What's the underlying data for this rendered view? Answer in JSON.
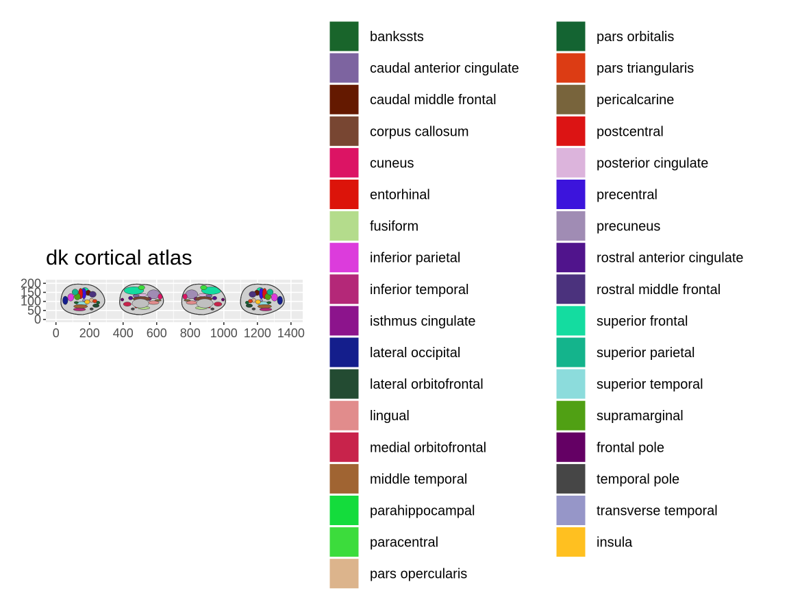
{
  "chart_data": {
    "type": "other",
    "title": "dk cortical atlas",
    "xlim": [
      -60,
      1470
    ],
    "ylim": [
      -15,
      220
    ],
    "x_ticks": [
      0,
      200,
      400,
      600,
      800,
      1000,
      1200,
      1400
    ],
    "y_ticks": [
      0,
      50,
      100,
      150,
      200
    ],
    "x_tick_labels": [
      "0",
      "200",
      "400",
      "600",
      "800",
      "1000",
      "1200",
      "1400"
    ],
    "y_tick_labels": [
      "0",
      "50",
      "100",
      "150",
      "200"
    ],
    "grid": true,
    "panel_background": "#ebebeb",
    "legend_position": "right",
    "views": [
      {
        "center_x": 160,
        "center_y": 110,
        "side": "lateral-left"
      },
      {
        "center_x": 510,
        "center_y": 110,
        "side": "medial-left"
      },
      {
        "center_x": 880,
        "center_y": 110,
        "side": "medial-right"
      },
      {
        "center_x": 1230,
        "center_y": 110,
        "side": "lateral-right"
      }
    ],
    "legend": [
      {
        "label": "bankssts",
        "color": "#19652b"
      },
      {
        "label": "caudal anterior cingulate",
        "color": "#7d64a0"
      },
      {
        "label": "caudal middle frontal",
        "color": "#641900"
      },
      {
        "label": "corpus callosum",
        "color": "#784632"
      },
      {
        "label": "cuneus",
        "color": "#dc1464"
      },
      {
        "label": "entorhinal",
        "color": "#dc140a"
      },
      {
        "label": "fusiform",
        "color": "#b4dc8c"
      },
      {
        "label": "inferior parietal",
        "color": "#dc3cdc"
      },
      {
        "label": "inferior temporal",
        "color": "#b42878"
      },
      {
        "label": "isthmus cingulate",
        "color": "#8c148c"
      },
      {
        "label": "lateral occipital",
        "color": "#141e8c"
      },
      {
        "label": "lateral orbitofrontal",
        "color": "#234b32"
      },
      {
        "label": "lingual",
        "color": "#e18c8c"
      },
      {
        "label": "medial orbitofrontal",
        "color": "#c8234b"
      },
      {
        "label": "middle temporal",
        "color": "#a06432"
      },
      {
        "label": "parahippocampal",
        "color": "#14dc3c"
      },
      {
        "label": "paracentral",
        "color": "#3cdc3c"
      },
      {
        "label": "pars opercularis",
        "color": "#dcb48c"
      },
      {
        "label": "pars orbitalis",
        "color": "#146432"
      },
      {
        "label": "pars triangularis",
        "color": "#dc3c14"
      },
      {
        "label": "pericalcarine",
        "color": "#78643c"
      },
      {
        "label": "postcentral",
        "color": "#dc1414"
      },
      {
        "label": "posterior cingulate",
        "color": "#dcb4dc"
      },
      {
        "label": "precentral",
        "color": "#3c14dc"
      },
      {
        "label": "precuneus",
        "color": "#a08cb4"
      },
      {
        "label": "rostral anterior cingulate",
        "color": "#50148c"
      },
      {
        "label": "rostral middle frontal",
        "color": "#4b327d"
      },
      {
        "label": "superior frontal",
        "color": "#14dca0"
      },
      {
        "label": "superior parietal",
        "color": "#14b48c"
      },
      {
        "label": "superior temporal",
        "color": "#8cdcdc"
      },
      {
        "label": "supramarginal",
        "color": "#50a014"
      },
      {
        "label": "frontal pole",
        "color": "#640064"
      },
      {
        "label": "temporal pole",
        "color": "#464646"
      },
      {
        "label": "transverse temporal",
        "color": "#9696c8"
      },
      {
        "label": "insula",
        "color": "#ffc020"
      }
    ]
  }
}
